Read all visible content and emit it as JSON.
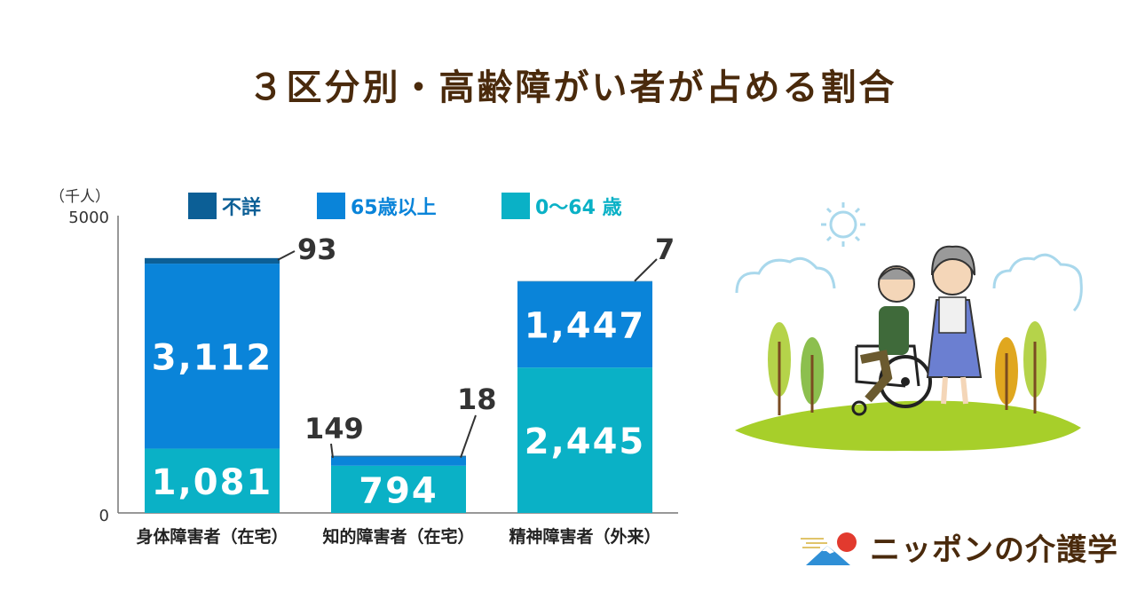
{
  "title": "３区分別・高齢障がい者が占める割合",
  "brand_name": "ニッポンの介護学",
  "colors": {
    "unknown": "#0c5f96",
    "over65": "#0a84d9",
    "under65": "#0ab1c6",
    "title": "#4a2a0c"
  },
  "chart_data": {
    "type": "bar",
    "stacked": true,
    "unit_label": "（千人）",
    "ylim": [
      0,
      5000
    ],
    "yticks": [
      "0",
      "5000"
    ],
    "categories": [
      "身体障害者（在宅）",
      "知的障害者（在宅）",
      "精神障害者（外来）"
    ],
    "series": [
      {
        "name": "0～64 歳",
        "values": [
          1081,
          794,
          2445
        ],
        "labels": [
          "1,081",
          "794",
          "2,445"
        ]
      },
      {
        "name": "65歳以上",
        "values": [
          3112,
          149,
          1447
        ],
        "labels": [
          "3,112",
          "149",
          "1,447"
        ]
      },
      {
        "name": "不詳",
        "values": [
          93,
          18,
          7
        ],
        "labels": [
          "93",
          "18",
          "7"
        ]
      }
    ],
    "legend": "top"
  }
}
